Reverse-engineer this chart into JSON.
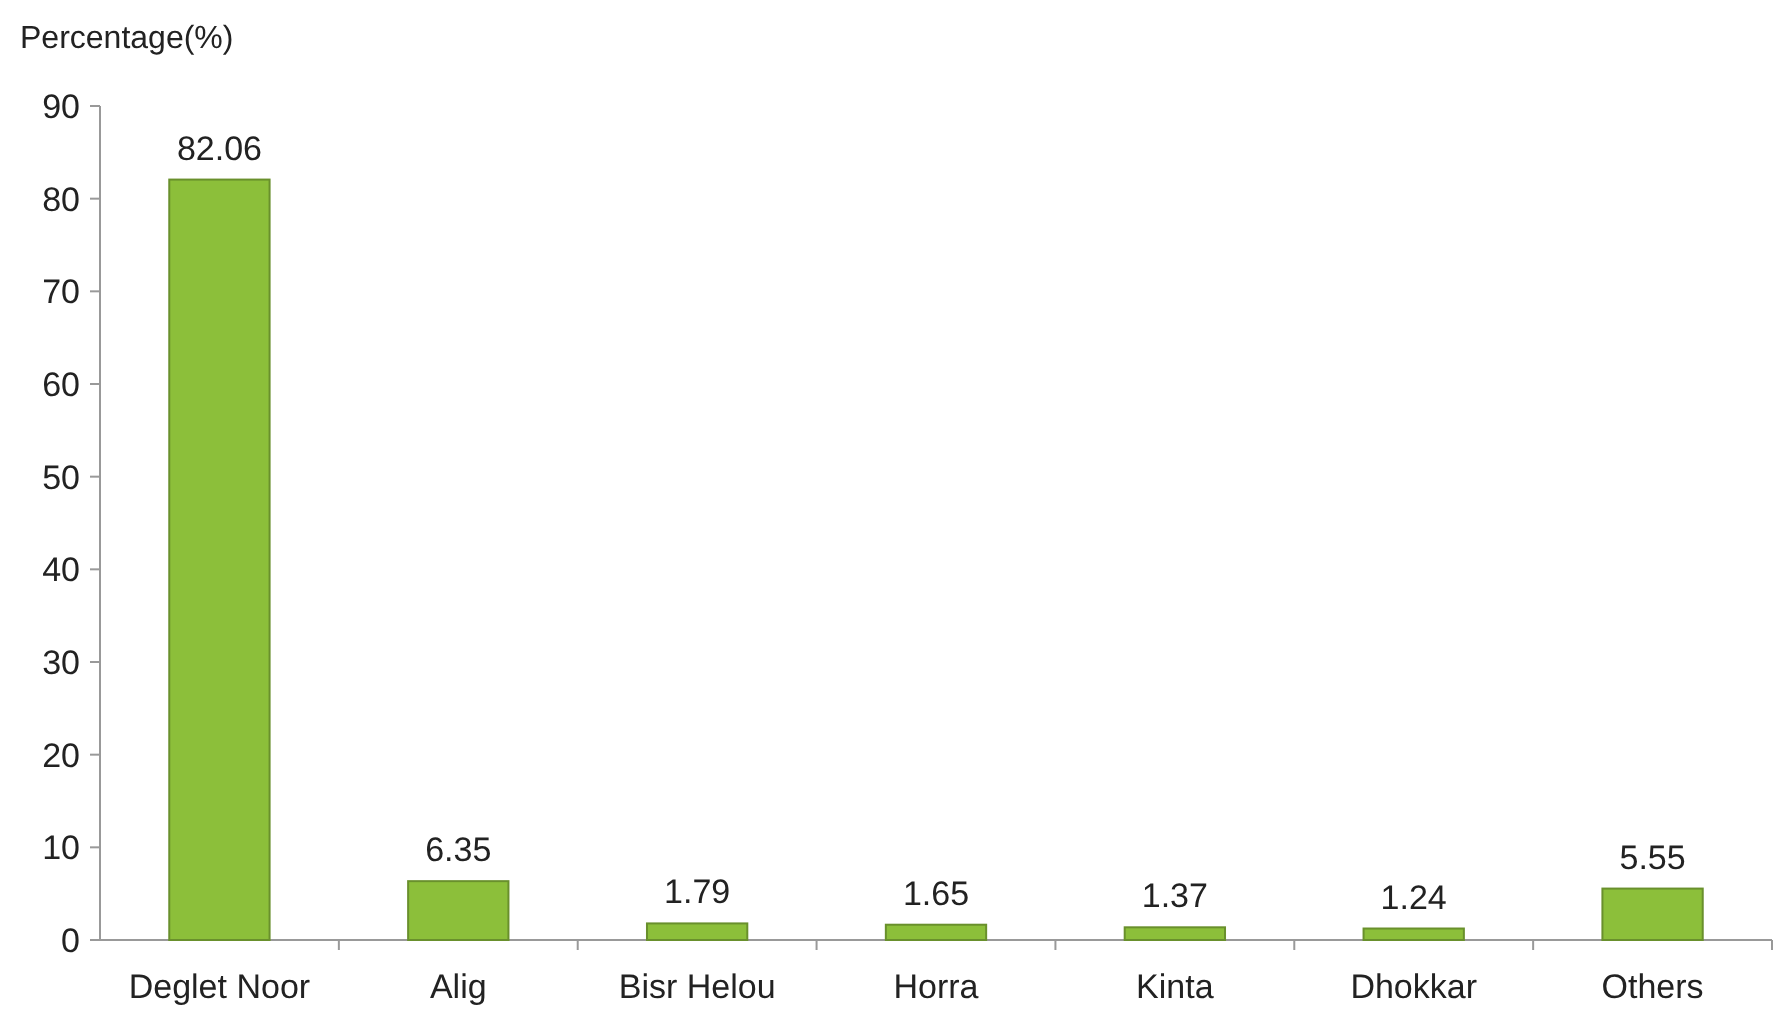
{
  "chart_data": {
    "type": "bar",
    "ylabel": "Percentage(%)",
    "categories": [
      "Deglet Noor",
      "Alig",
      "Bisr Helou",
      "Horra",
      "Kinta",
      "Dhokkar",
      "Others"
    ],
    "values": [
      82.06,
      6.35,
      1.79,
      1.65,
      1.37,
      1.24,
      5.55
    ],
    "color": "#8cbf3a",
    "ylim": [
      0,
      90
    ],
    "yticks": [
      0,
      10,
      20,
      30,
      40,
      50,
      60,
      70,
      80,
      90
    ],
    "data_labels": true,
    "grid": false
  }
}
